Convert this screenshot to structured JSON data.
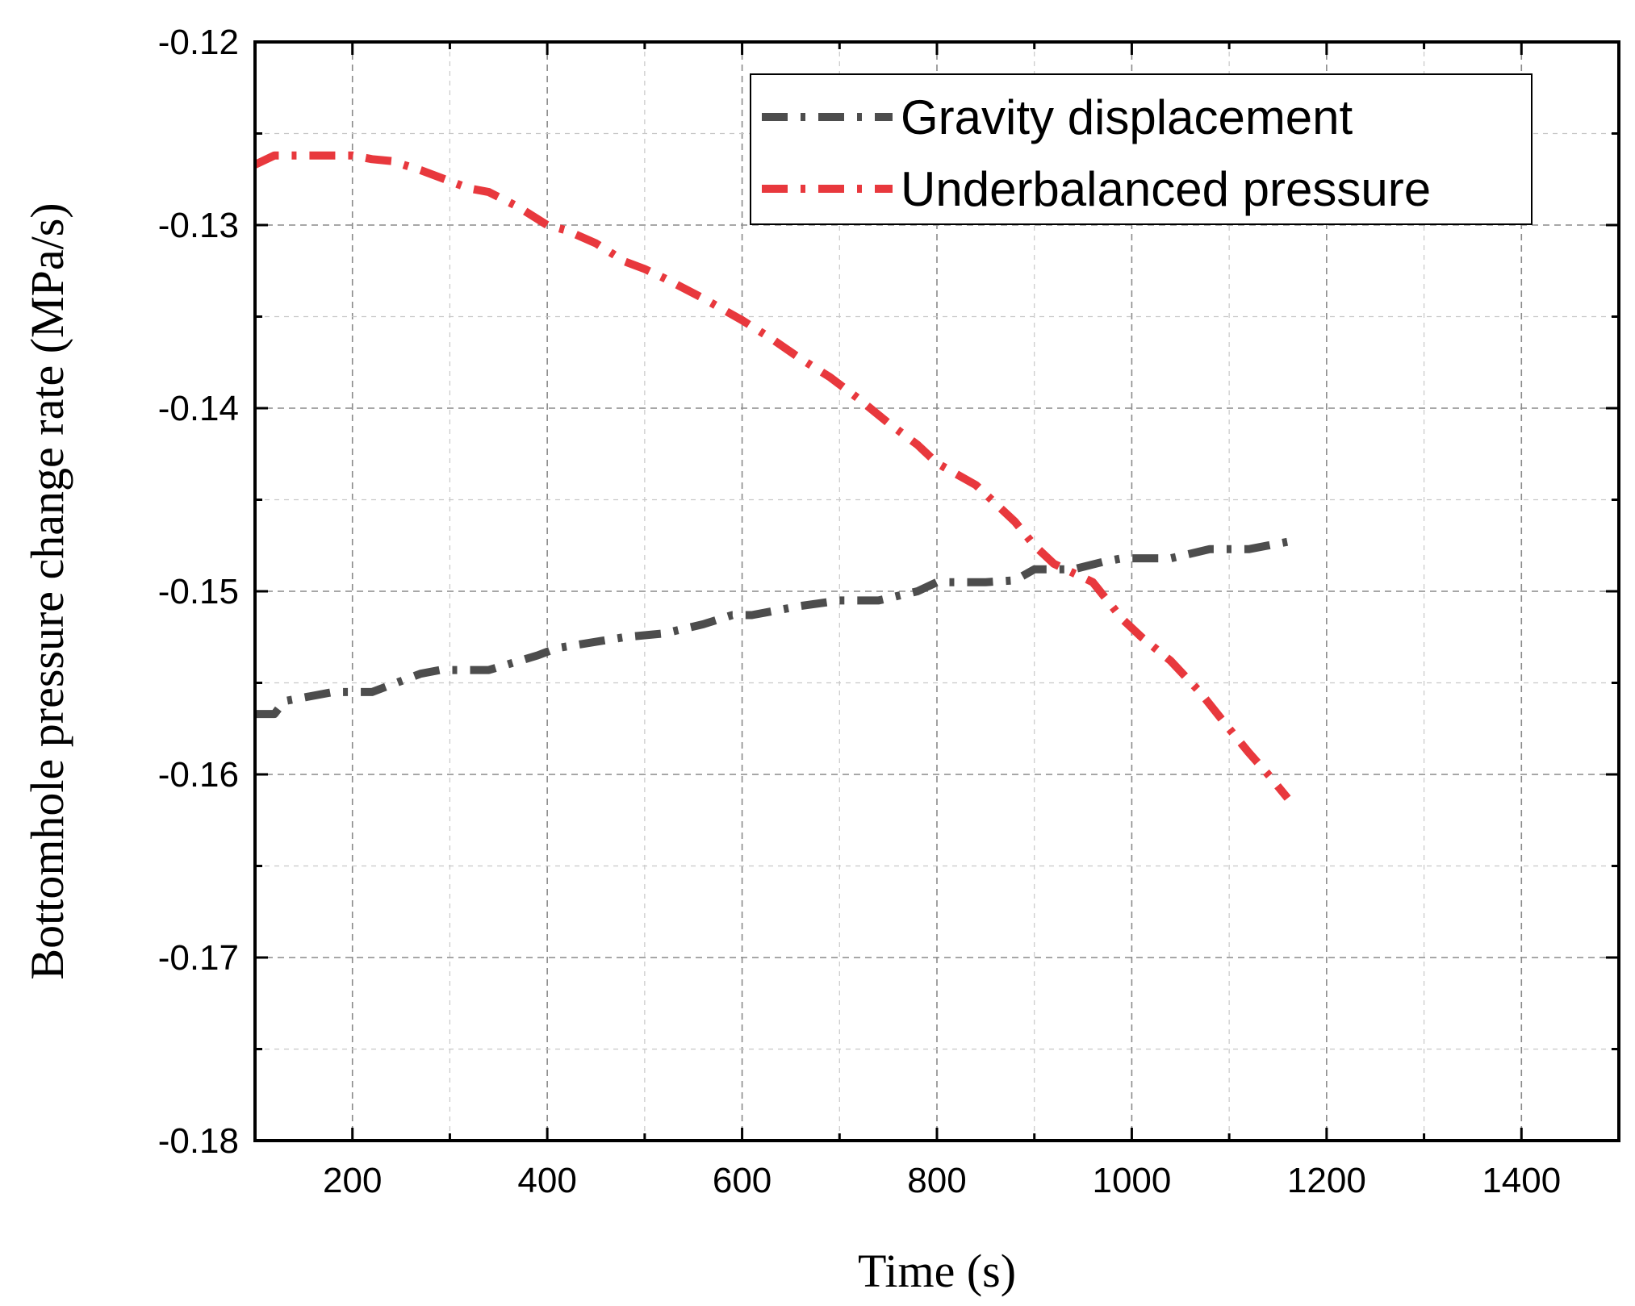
{
  "chart_data": {
    "type": "line",
    "title": "",
    "xlabel": "Time (s)",
    "ylabel": "Bottomhole pressure change rate (MPa/s)",
    "xlim": [
      100,
      1500
    ],
    "ylim": [
      -0.18,
      -0.12
    ],
    "xticks": [
      200,
      400,
      600,
      800,
      1000,
      1200,
      1400
    ],
    "xtick_labels": [
      "200",
      "400",
      "600",
      "800",
      "1000",
      "1200",
      "1400"
    ],
    "yticks": [
      -0.18,
      -0.17,
      -0.16,
      -0.15,
      -0.14,
      -0.13,
      -0.12
    ],
    "ytick_labels": [
      "-0.18",
      "-0.17",
      "-0.16",
      "-0.15",
      "-0.14",
      "-0.13",
      "-0.12"
    ],
    "grid": true,
    "legend_position": "top-right",
    "series": [
      {
        "name": "Gravity displacement",
        "color": "#4d4d4d",
        "style": "dash-dot",
        "x": [
          100,
          120,
          130,
          180,
          220,
          270,
          290,
          340,
          390,
          410,
          480,
          520,
          560,
          590,
          610,
          660,
          700,
          740,
          780,
          800,
          850,
          880,
          900,
          940,
          970,
          990,
          1040,
          1080,
          1120,
          1170
        ],
        "y": [
          -0.1567,
          -0.1567,
          -0.156,
          -0.1555,
          -0.1555,
          -0.1545,
          -0.1543,
          -0.1543,
          -0.1535,
          -0.1531,
          -0.1525,
          -0.1523,
          -0.1518,
          -0.1513,
          -0.1513,
          -0.1508,
          -0.1505,
          -0.1505,
          -0.15,
          -0.1495,
          -0.1495,
          -0.1494,
          -0.1488,
          -0.1488,
          -0.1484,
          -0.1482,
          -0.1482,
          -0.1477,
          -0.1477,
          -0.1472
        ]
      },
      {
        "name": "Underbalanced pressure",
        "color": "#e8383d",
        "style": "dash-dot",
        "x": [
          100,
          120,
          200,
          220,
          240,
          270,
          300,
          320,
          340,
          370,
          400,
          420,
          450,
          480,
          500,
          520,
          560,
          600,
          630,
          660,
          690,
          720,
          750,
          780,
          800,
          840,
          880,
          900,
          920,
          960,
          990,
          1010,
          1040,
          1070,
          1100,
          1120,
          1140,
          1160
        ],
        "y": [
          -0.1267,
          -0.1262,
          -0.1262,
          -0.1264,
          -0.1265,
          -0.127,
          -0.1276,
          -0.128,
          -0.1282,
          -0.129,
          -0.13,
          -0.1303,
          -0.131,
          -0.132,
          -0.1324,
          -0.1329,
          -0.134,
          -0.1352,
          -0.1362,
          -0.1373,
          -0.1383,
          -0.1395,
          -0.1408,
          -0.142,
          -0.143,
          -0.1442,
          -0.1462,
          -0.1475,
          -0.1485,
          -0.1495,
          -0.1515,
          -0.1525,
          -0.1538,
          -0.1555,
          -0.1575,
          -0.1588,
          -0.16,
          -0.1613
        ]
      }
    ]
  }
}
